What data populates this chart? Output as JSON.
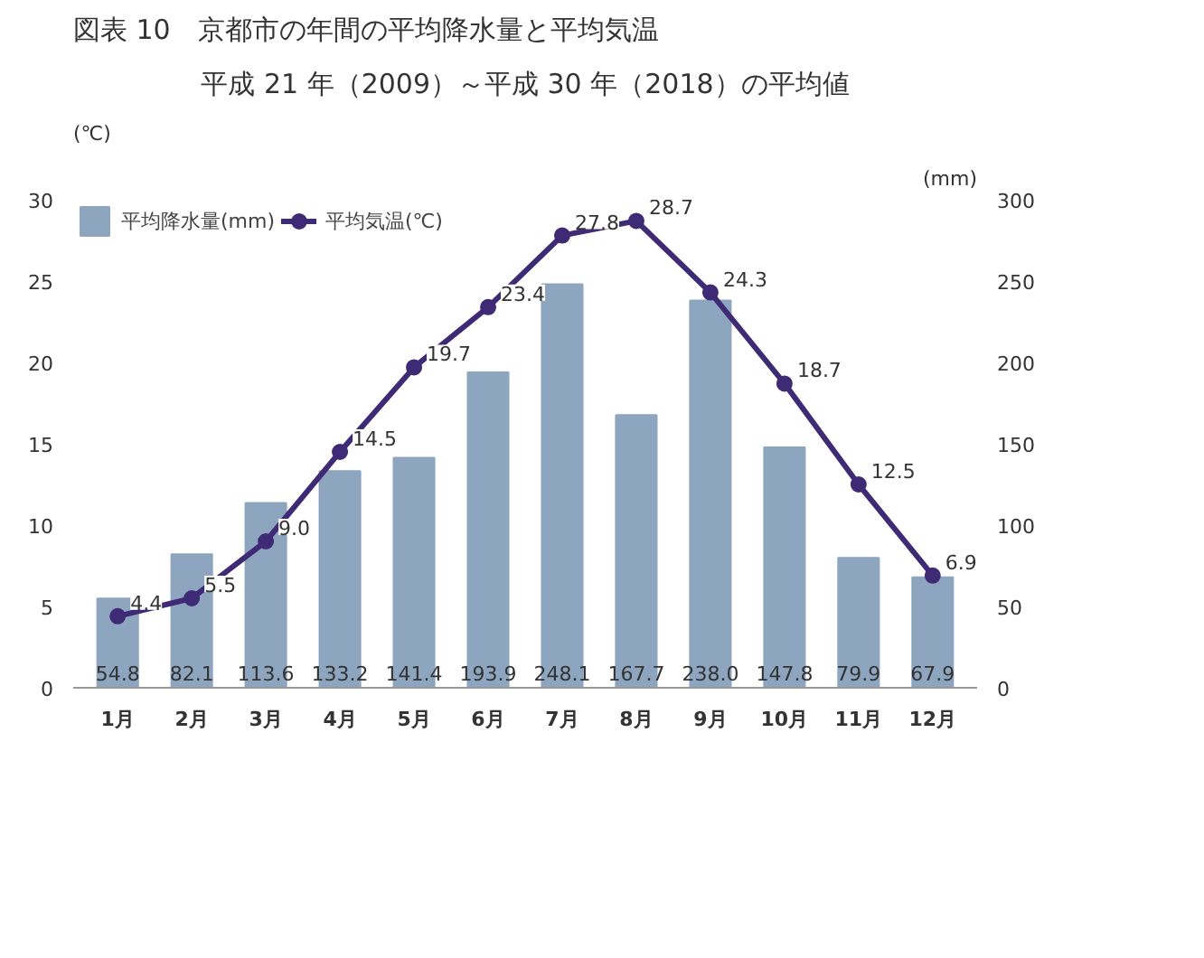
{
  "chart_data": {
    "type": "bar",
    "title": "図表 10　京都市の年間の平均降水量と平均気温",
    "subtitle": "平成 21 年（2009）～平成 30 年（2018）の平均値",
    "ylabel": "(℃)",
    "y2label": "(mm)",
    "categories": [
      "1月",
      "2月",
      "3月",
      "4月",
      "5月",
      "6月",
      "7月",
      "8月",
      "9月",
      "10月",
      "11月",
      "12月"
    ],
    "series": [
      {
        "name": "平均降水量(mm)",
        "axis": "y2",
        "color": "#8ea5bf",
        "values": [
          54.8,
          82.1,
          113.6,
          133.2,
          141.4,
          193.9,
          248.1,
          167.7,
          238.0,
          147.8,
          79.9,
          67.9
        ],
        "value_labels": [
          "54.8",
          "82.1",
          "113.6",
          "133.2",
          "141.4",
          "193.9",
          "248.1",
          "167.7",
          "238.0",
          "147.8",
          "79.9",
          "67.9"
        ]
      },
      {
        "name": "平均気温(℃)",
        "type": "line",
        "color": "#3f2a75",
        "values": [
          4.4,
          5.5,
          9.0,
          14.5,
          19.7,
          23.4,
          27.8,
          28.7,
          24.3,
          18.7,
          12.5,
          6.9
        ],
        "value_labels": [
          "4.4",
          "5.5",
          "9.0",
          "14.5",
          "19.7",
          "23.4",
          "27.8",
          "28.7",
          "24.3",
          "18.7",
          "12.5",
          "6.9"
        ]
      }
    ],
    "ylim": [
      0,
      30
    ],
    "yticks": [
      0,
      5,
      10,
      15,
      20,
      25,
      30
    ],
    "y2lim": [
      0,
      300
    ],
    "y2ticks": [
      0,
      50,
      100,
      150,
      200,
      250,
      300
    ],
    "legend": "top left",
    "marker": "circle",
    "line_style": "solid"
  }
}
